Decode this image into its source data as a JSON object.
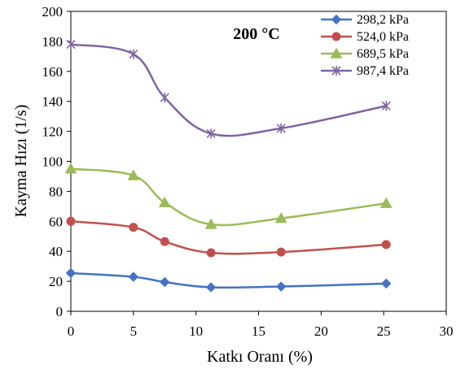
{
  "chart_data": {
    "type": "line",
    "annotation": "200 °C",
    "xlabel": "Katkı Oranı (%)",
    "ylabel": "Kayma Hızı (1/s)",
    "xlim": [
      0,
      30
    ],
    "ylim": [
      0,
      200
    ],
    "xticks": [
      0,
      5,
      10,
      15,
      20,
      25,
      30
    ],
    "yticks": [
      0,
      20,
      40,
      60,
      80,
      100,
      120,
      140,
      160,
      180,
      200
    ],
    "grid": false,
    "legend_position": "top-right",
    "x": [
      0,
      5,
      7.5,
      11.2,
      16.8,
      25.2
    ],
    "series": [
      {
        "name": "298,2 kPa",
        "color": "#4472C4",
        "marker": "diamond",
        "values": [
          25.5,
          23,
          19.5,
          16,
          16.5,
          18.5
        ]
      },
      {
        "name": "524,0 kPa",
        "color": "#C0504D",
        "marker": "circle",
        "values": [
          60,
          56,
          46.5,
          39,
          39.5,
          44.5
        ]
      },
      {
        "name": "689,5 kPa",
        "color": "#9BBB59",
        "marker": "triangle",
        "values": [
          95,
          90.5,
          72.5,
          58,
          62,
          72
        ]
      },
      {
        "name": "987,4 kPa",
        "color": "#8064A2",
        "marker": "star",
        "values": [
          178,
          171.5,
          142.5,
          118.5,
          122,
          137
        ]
      }
    ]
  }
}
